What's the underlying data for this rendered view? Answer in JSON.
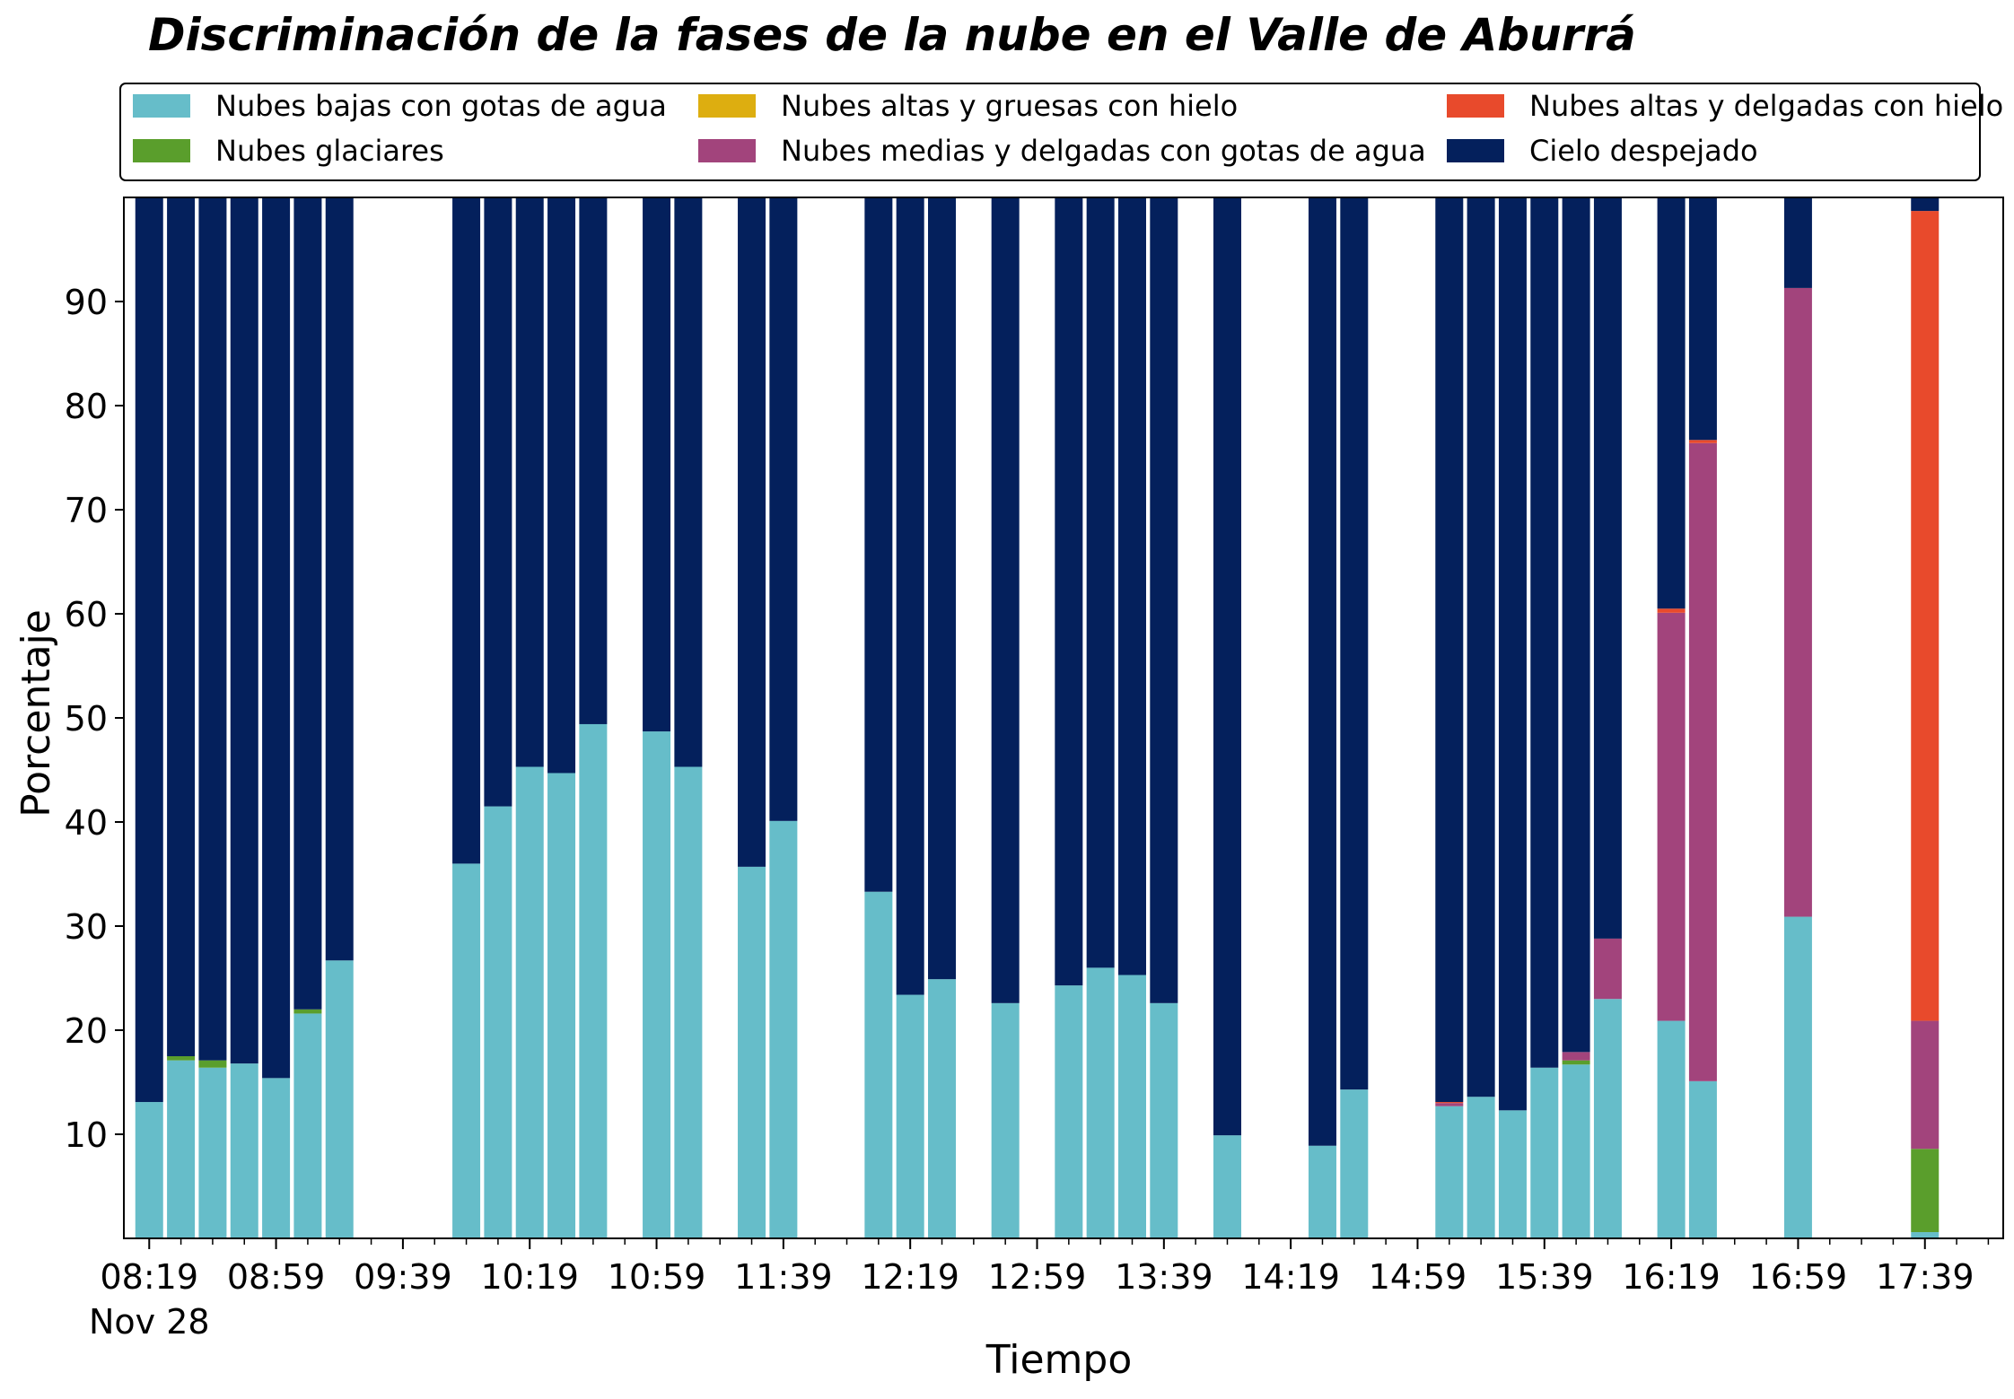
{
  "chart_data": {
    "type": "bar",
    "stacked": true,
    "title": "Discriminación de la fases de la nube en el Valle de Aburrá",
    "xlabel": "Tiempo",
    "ylabel": "Porcentaje",
    "ylim": [
      0,
      100
    ],
    "yticks": [
      10,
      20,
      30,
      40,
      50,
      60,
      70,
      80,
      90
    ],
    "xlim_minutes": [
      491,
      1084
    ],
    "xticks": [
      {
        "minute": 499,
        "label": "08:19",
        "sublabel": "Nov 28"
      },
      {
        "minute": 539,
        "label": "08:59"
      },
      {
        "minute": 579,
        "label": "09:39"
      },
      {
        "minute": 619,
        "label": "10:19"
      },
      {
        "minute": 659,
        "label": "10:59"
      },
      {
        "minute": 699,
        "label": "11:39"
      },
      {
        "minute": 739,
        "label": "12:19"
      },
      {
        "minute": 779,
        "label": "12:59"
      },
      {
        "minute": 819,
        "label": "13:39"
      },
      {
        "minute": 859,
        "label": "14:19"
      },
      {
        "minute": 899,
        "label": "14:59"
      },
      {
        "minute": 939,
        "label": "15:39"
      },
      {
        "minute": 979,
        "label": "16:19"
      },
      {
        "minute": 1019,
        "label": "16:59"
      },
      {
        "minute": 1059,
        "label": "17:39"
      }
    ],
    "grid": false,
    "legend_position": "top",
    "series": [
      {
        "name": "Nubes bajas con gotas de agua",
        "color": "#66bdc9"
      },
      {
        "name": "Nubes glaciares",
        "color": "#5a9e2c"
      },
      {
        "name": "Nubes altas y gruesas con hielo",
        "color": "#ddae10"
      },
      {
        "name": "Nubes medias y delgadas con gotas de agua",
        "color": "#a2447c"
      },
      {
        "name": "Nubes altas y delgadas con hielo",
        "color": "#e84a2c"
      },
      {
        "name": "Cielo despejado",
        "color": "#04205c"
      }
    ],
    "bars": [
      {
        "x": "08:19",
        "minute": 499,
        "values": [
          13.1,
          0,
          0,
          0,
          0,
          86.9
        ]
      },
      {
        "x": "08:29",
        "minute": 509,
        "values": [
          17.1,
          0.4,
          0,
          0,
          0,
          82.5
        ]
      },
      {
        "x": "08:39",
        "minute": 519,
        "values": [
          16.4,
          0.7,
          0,
          0,
          0,
          82.9
        ]
      },
      {
        "x": "08:49",
        "minute": 529,
        "values": [
          16.8,
          0,
          0,
          0,
          0,
          83.2
        ]
      },
      {
        "x": "08:59",
        "minute": 539,
        "values": [
          15.4,
          0,
          0,
          0,
          0,
          84.6
        ]
      },
      {
        "x": "09:09",
        "minute": 549,
        "values": [
          21.6,
          0.4,
          0,
          0,
          0,
          78.0
        ]
      },
      {
        "x": "09:19",
        "minute": 559,
        "values": [
          26.7,
          0,
          0,
          0,
          0,
          73.3
        ]
      },
      {
        "x": "09:59",
        "minute": 599,
        "values": [
          36.0,
          0,
          0,
          0,
          0,
          64.0
        ]
      },
      {
        "x": "10:09",
        "minute": 609,
        "values": [
          41.5,
          0,
          0,
          0,
          0,
          58.5
        ]
      },
      {
        "x": "10:19",
        "minute": 619,
        "values": [
          45.3,
          0,
          0,
          0,
          0,
          54.7
        ]
      },
      {
        "x": "10:29",
        "minute": 629,
        "values": [
          44.7,
          0,
          0,
          0,
          0,
          55.3
        ]
      },
      {
        "x": "10:39",
        "minute": 639,
        "values": [
          49.4,
          0,
          0,
          0,
          0,
          50.6
        ]
      },
      {
        "x": "10:59",
        "minute": 659,
        "values": [
          48.7,
          0,
          0,
          0,
          0,
          51.3
        ]
      },
      {
        "x": "11:09",
        "minute": 669,
        "values": [
          45.3,
          0,
          0,
          0,
          0,
          54.7
        ]
      },
      {
        "x": "11:29",
        "minute": 689,
        "values": [
          35.7,
          0,
          0,
          0,
          0,
          64.3
        ]
      },
      {
        "x": "11:39",
        "minute": 699,
        "values": [
          40.1,
          0,
          0,
          0,
          0,
          59.9
        ]
      },
      {
        "x": "12:09",
        "minute": 729,
        "values": [
          33.3,
          0,
          0,
          0,
          0,
          66.7
        ]
      },
      {
        "x": "12:19",
        "minute": 739,
        "values": [
          23.4,
          0,
          0,
          0,
          0,
          76.6
        ]
      },
      {
        "x": "12:29",
        "minute": 749,
        "values": [
          24.9,
          0,
          0,
          0,
          0,
          75.1
        ]
      },
      {
        "x": "12:49",
        "minute": 769,
        "values": [
          22.6,
          0,
          0,
          0,
          0,
          77.4
        ]
      },
      {
        "x": "13:09",
        "minute": 789,
        "values": [
          24.3,
          0,
          0,
          0,
          0,
          75.7
        ]
      },
      {
        "x": "13:19",
        "minute": 799,
        "values": [
          26.0,
          0,
          0,
          0,
          0,
          74.0
        ]
      },
      {
        "x": "13:29",
        "minute": 809,
        "values": [
          25.3,
          0,
          0,
          0,
          0,
          74.7
        ]
      },
      {
        "x": "13:39",
        "minute": 819,
        "values": [
          22.6,
          0,
          0,
          0,
          0,
          77.4
        ]
      },
      {
        "x": "13:59",
        "minute": 839,
        "values": [
          9.9,
          0,
          0,
          0,
          0,
          90.1
        ]
      },
      {
        "x": "14:29",
        "minute": 869,
        "values": [
          8.9,
          0,
          0,
          0,
          0,
          91.1
        ]
      },
      {
        "x": "14:39",
        "minute": 879,
        "values": [
          14.3,
          0,
          0,
          0,
          0,
          85.7
        ]
      },
      {
        "x": "15:09",
        "minute": 909,
        "values": [
          12.7,
          0,
          0,
          0.3,
          0.1,
          86.9
        ]
      },
      {
        "x": "15:19",
        "minute": 919,
        "values": [
          13.6,
          0,
          0,
          0,
          0,
          86.4
        ]
      },
      {
        "x": "15:29",
        "minute": 929,
        "values": [
          12.3,
          0,
          0,
          0,
          0,
          87.7
        ]
      },
      {
        "x": "15:39",
        "minute": 939,
        "values": [
          16.4,
          0,
          0,
          0,
          0,
          83.6
        ]
      },
      {
        "x": "15:49",
        "minute": 949,
        "values": [
          16.7,
          0.4,
          0,
          0.8,
          0,
          82.1
        ]
      },
      {
        "x": "15:59",
        "minute": 959,
        "values": [
          23.0,
          0,
          0,
          5.8,
          0,
          71.2
        ]
      },
      {
        "x": "16:19",
        "minute": 979,
        "values": [
          20.9,
          0,
          0,
          39.2,
          0.4,
          39.5
        ]
      },
      {
        "x": "16:29",
        "minute": 989,
        "values": [
          15.1,
          0,
          0,
          61.3,
          0.3,
          23.3
        ]
      },
      {
        "x": "16:59",
        "minute": 1019,
        "values": [
          30.9,
          0,
          0,
          60.4,
          0,
          8.7
        ]
      },
      {
        "x": "17:39",
        "minute": 1059,
        "values": [
          0.6,
          8.0,
          0,
          12.3,
          77.8,
          1.3
        ]
      }
    ]
  }
}
